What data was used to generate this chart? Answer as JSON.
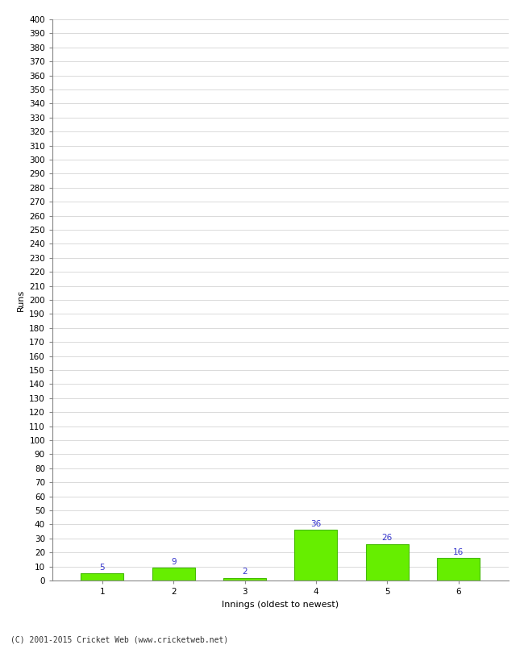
{
  "categories": [
    "1",
    "2",
    "3",
    "4",
    "5",
    "6"
  ],
  "values": [
    5,
    9,
    2,
    36,
    26,
    16
  ],
  "bar_color": "#66ee00",
  "bar_edge_color": "#44bb00",
  "xlabel": "Innings (oldest to newest)",
  "ylabel": "Runs",
  "ylim": [
    0,
    400
  ],
  "ytick_step": 10,
  "label_color": "#3333cc",
  "label_fontsize": 7.5,
  "axis_fontsize": 7.5,
  "xlabel_fontsize": 8,
  "ylabel_fontsize": 8,
  "background_color": "#ffffff",
  "plot_bg_color": "#ffffff",
  "grid_color": "#cccccc",
  "copyright": "(C) 2001-2015 Cricket Web (www.cricketweb.net)"
}
